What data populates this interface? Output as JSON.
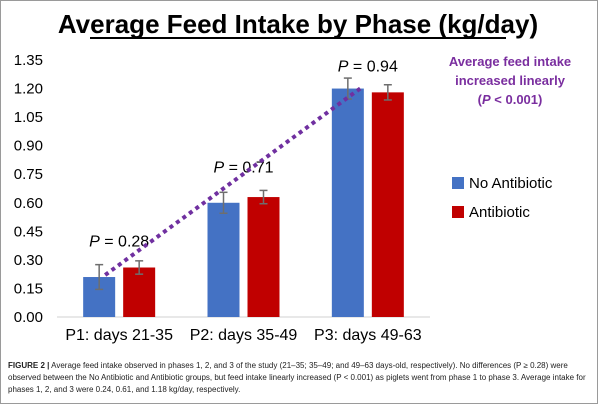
{
  "chart_data": {
    "type": "bar",
    "title": "Average Feed Intake by Phase (kg/day)",
    "categories": [
      "P1: days 21-35",
      "P2: days 35-49",
      "P3: days 49-63"
    ],
    "series": [
      {
        "name": "No Antibiotic",
        "values": [
          0.21,
          0.6,
          1.2
        ],
        "errors": [
          0.065,
          0.055,
          0.055
        ],
        "color": "#4472c4"
      },
      {
        "name": "Antibiotic",
        "values": [
          0.26,
          0.63,
          1.18
        ],
        "errors": [
          0.035,
          0.035,
          0.04
        ],
        "color": "#c00000"
      }
    ],
    "ylim": [
      0,
      1.35
    ],
    "yticks": [
      "0.00",
      "0.15",
      "0.30",
      "0.45",
      "0.60",
      "0.75",
      "0.90",
      "1.05",
      "1.20",
      "1.35"
    ],
    "p_labels": [
      "P = 0.28",
      "P = 0.71",
      "P = 0.94"
    ],
    "p_label_values": [
      0.37,
      0.76,
      1.29
    ],
    "trend_line": {
      "from_value": 0.21,
      "to_value": 1.2,
      "color": "#7030a0"
    },
    "annotation": [
      "Average feed intake",
      "increased linearly",
      "(P < 0.001)"
    ],
    "legend_position": "right"
  },
  "caption": {
    "label": "FIGURE 2 |",
    "text": "Average feed intake observed in phases 1, 2, and 3 of the study (21–35; 35–49; and 49–63 days-old, respectively). No differences (P ≥ 0.28) were observed between the No Antibiotic and Antibiotic groups, but feed intake linearly increased (P < 0.001) as piglets went from phase 1 to phase 3. Average intake for phases 1, 2, and 3 were 0.24, 0.61, and 1.18 kg/day, respectively."
  }
}
